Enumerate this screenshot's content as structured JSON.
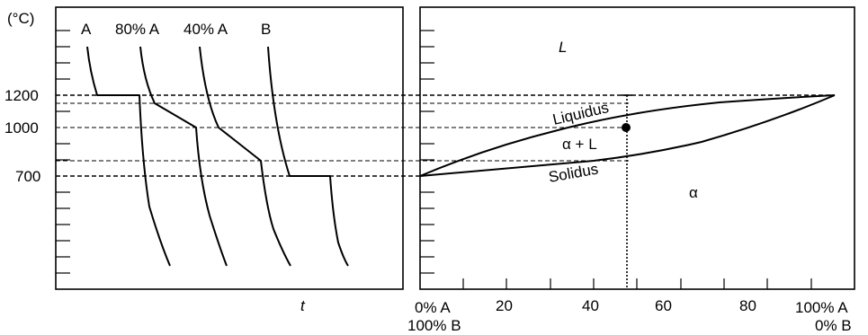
{
  "left_panel": {
    "y_unit": "(°C)",
    "y_ticks": [
      "1200",
      "1000",
      "700"
    ],
    "curve_labels": [
      "A",
      "80% A",
      "40% A",
      "B"
    ],
    "x_label": "t"
  },
  "right_panel": {
    "phase_liquid": "L",
    "phase_two": "α + L",
    "phase_solid": "α",
    "liquidus_label": "Liquidus",
    "solidus_label": "Solidus",
    "x_ticks": [
      "20",
      "40",
      "60",
      "80"
    ],
    "x_left_top": "0% A",
    "x_left_bottom": "100% B",
    "x_right_top": "100% A",
    "x_right_bottom": "0% B"
  }
}
